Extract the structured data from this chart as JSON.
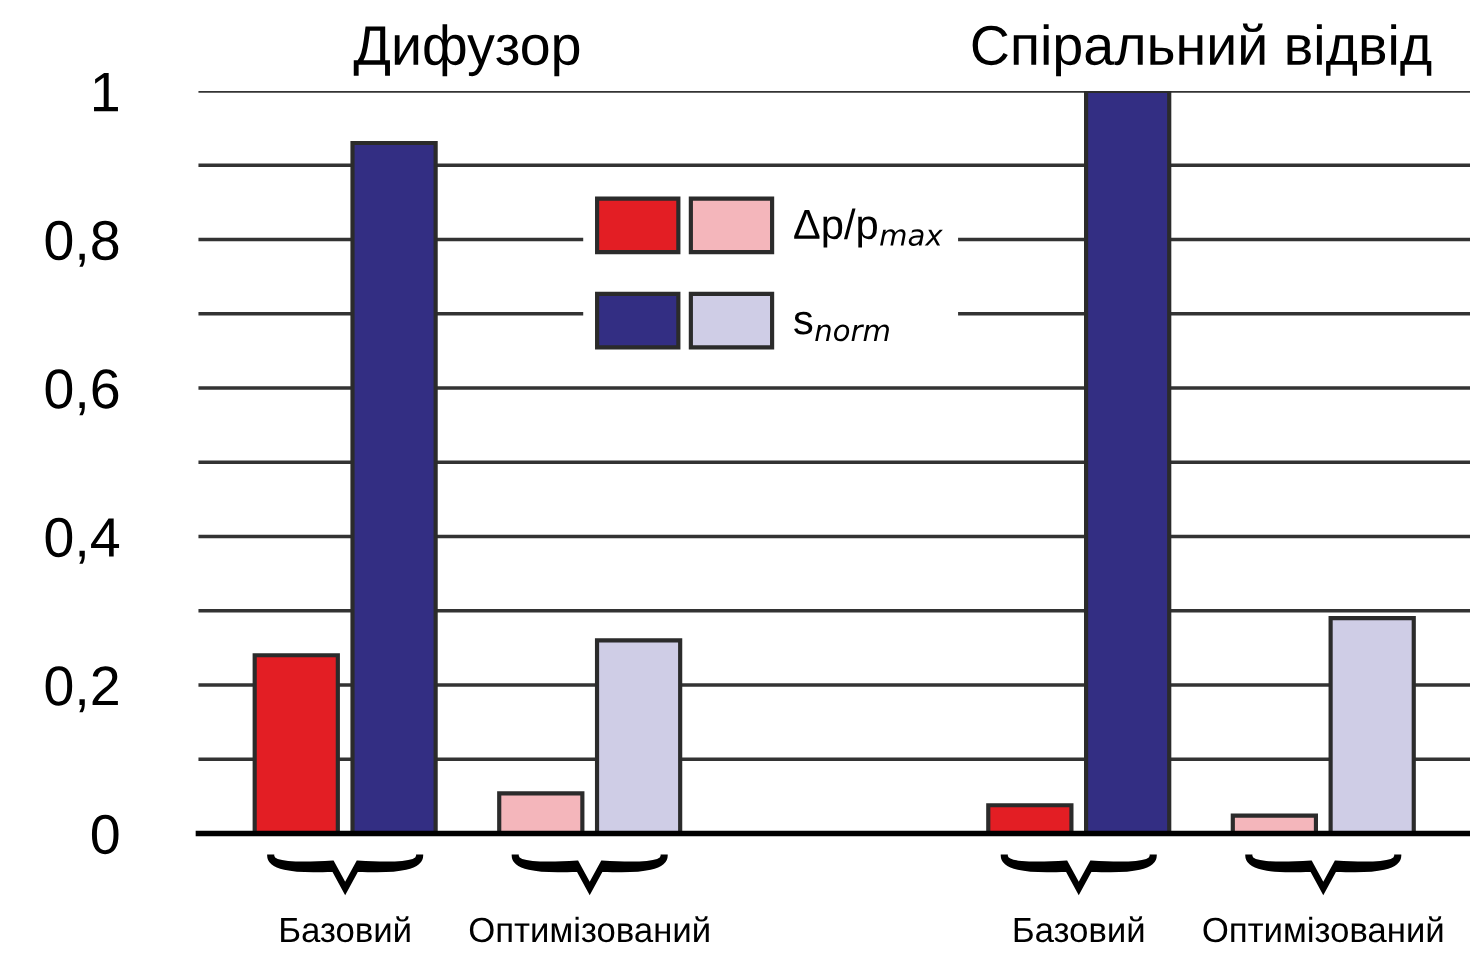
{
  "chart_data": {
    "type": "bar",
    "categories": [
      "Базовий",
      "Оптимізований",
      null,
      "Базовий",
      "Оптимізований"
    ],
    "series": [
      {
        "name": "Δp/p$_{max}$",
        "colors": [
          "#e31e24",
          "#f4b6bb",
          null,
          "#e31e24",
          "#f4b6bb"
        ],
        "values": [
          0.24,
          0.054,
          null,
          0.038,
          0.024
        ]
      },
      {
        "name": "s$_{norm}$",
        "colors": [
          "#332e83",
          "#cfcde6",
          null,
          "#332e83",
          "#cfcde6"
        ],
        "values": [
          0.93,
          0.26,
          null,
          1.0,
          0.29
        ]
      }
    ],
    "annotations": [
      "Дифузор",
      "Спіральний відвід"
    ],
    "ylim": [
      0,
      1
    ],
    "yticks": [
      0,
      {
        "value": 0.1,
        "label": null
      },
      {
        "value": 0.2,
        "label": "0,2"
      },
      {
        "value": 0.3,
        "label": null
      },
      {
        "value": 0.4,
        "label": "0,4"
      },
      {
        "value": 0.5,
        "label": null
      },
      {
        "value": 0.6,
        "label": "0,6"
      },
      {
        "value": 0.7,
        "label": null
      },
      {
        "value": 0.8,
        "label": "0,8"
      },
      {
        "value": 0.9,
        "label": null
      },
      1
    ],
    "grid": "y",
    "legend": "top"
  }
}
